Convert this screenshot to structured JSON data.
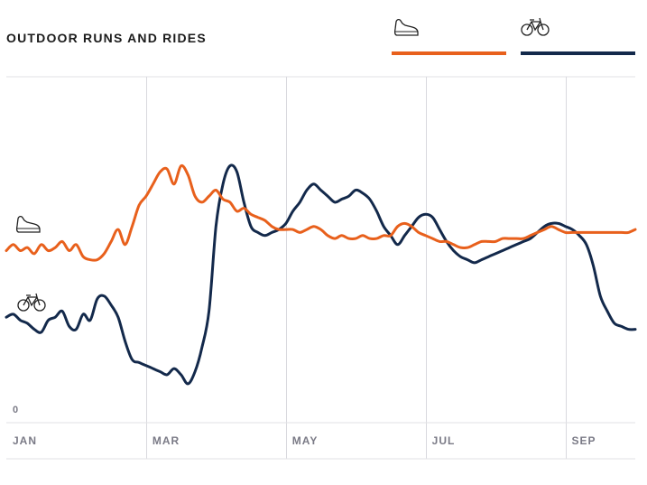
{
  "chart_data": {
    "type": "line",
    "title": "OUTDOOR RUNS AND RIDES",
    "xlabel": "",
    "ylabel": "",
    "y_tick_labels": [
      "0"
    ],
    "x_tick_labels": [
      "JAN",
      "MAR",
      "MAY",
      "JUL",
      "SEP"
    ],
    "x_tick_positions": [
      0,
      2,
      4,
      6,
      8
    ],
    "xlim": [
      0,
      9
    ],
    "ylim": [
      0,
      100
    ],
    "grid": "vertical",
    "legend": "top-right",
    "series": [
      {
        "icon": "shoe-icon",
        "color": "#e8601c",
        "x": [
          0,
          0.1,
          0.2,
          0.3,
          0.4,
          0.5,
          0.6,
          0.7,
          0.8,
          0.9,
          1.0,
          1.1,
          1.2,
          1.3,
          1.4,
          1.5,
          1.6,
          1.7,
          1.8,
          1.9,
          2.0,
          2.1,
          2.2,
          2.3,
          2.4,
          2.5,
          2.6,
          2.7,
          2.8,
          2.9,
          3.0,
          3.1,
          3.2,
          3.3,
          3.4,
          3.5,
          3.6,
          3.7,
          3.8,
          3.9,
          4.0,
          4.1,
          4.2,
          4.3,
          4.4,
          4.5,
          4.6,
          4.7,
          4.8,
          4.9,
          5.0,
          5.1,
          5.2,
          5.3,
          5.4,
          5.5,
          5.6,
          5.7,
          5.8,
          5.9,
          6.0,
          6.1,
          6.2,
          6.3,
          6.4,
          6.5,
          6.6,
          6.7,
          6.8,
          6.9,
          7.0,
          7.1,
          7.2,
          7.3,
          7.4,
          7.5,
          7.6,
          7.7,
          7.8,
          7.9,
          8.0,
          8.1,
          8.2,
          8.3,
          8.4,
          8.5,
          8.6,
          8.7,
          8.8,
          8.9,
          9.0
        ],
        "values": [
          50,
          52,
          50,
          51,
          49,
          52,
          50,
          51,
          53,
          50,
          52,
          48,
          47,
          47,
          49,
          53,
          57,
          52,
          58,
          65,
          68,
          72,
          76,
          77,
          72,
          78,
          75,
          68,
          66,
          68,
          70,
          67,
          66,
          63,
          64,
          62,
          61,
          60,
          58,
          57,
          57,
          57,
          56,
          57,
          58,
          57,
          55,
          54,
          55,
          54,
          54,
          55,
          54,
          54,
          55,
          55,
          58,
          59,
          58,
          56,
          55,
          54,
          53,
          53,
          52,
          51,
          51,
          52,
          53,
          53,
          53,
          54,
          54,
          54,
          54,
          55,
          56,
          57,
          58,
          57,
          56,
          56,
          56,
          56,
          56,
          56,
          56,
          56,
          56,
          56,
          57
        ]
      },
      {
        "icon": "bicycle-icon",
        "color": "#13294b",
        "x": [
          0,
          0.1,
          0.2,
          0.3,
          0.4,
          0.5,
          0.6,
          0.7,
          0.8,
          0.9,
          1.0,
          1.1,
          1.2,
          1.3,
          1.4,
          1.5,
          1.6,
          1.7,
          1.8,
          1.9,
          2.0,
          2.1,
          2.2,
          2.3,
          2.4,
          2.5,
          2.6,
          2.7,
          2.8,
          2.9,
          3.0,
          3.1,
          3.2,
          3.3,
          3.4,
          3.5,
          3.6,
          3.7,
          3.8,
          3.9,
          4.0,
          4.1,
          4.2,
          4.3,
          4.4,
          4.5,
          4.6,
          4.7,
          4.8,
          4.9,
          5.0,
          5.1,
          5.2,
          5.3,
          5.4,
          5.5,
          5.6,
          5.7,
          5.8,
          5.9,
          6.0,
          6.1,
          6.2,
          6.3,
          6.4,
          6.5,
          6.6,
          6.7,
          6.8,
          6.9,
          7.0,
          7.1,
          7.2,
          7.3,
          7.4,
          7.5,
          7.6,
          7.7,
          7.8,
          7.9,
          8.0,
          8.1,
          8.2,
          8.3,
          8.4,
          8.5,
          8.6,
          8.7,
          8.8,
          8.9,
          9.0
        ],
        "values": [
          28,
          29,
          27,
          26,
          24,
          23,
          27,
          28,
          30,
          25,
          24,
          29,
          27,
          34,
          35,
          32,
          28,
          20,
          14,
          13,
          12,
          11,
          10,
          9,
          11,
          9,
          6,
          10,
          18,
          30,
          58,
          72,
          78,
          76,
          66,
          58,
          56,
          55,
          56,
          57,
          59,
          63,
          66,
          70,
          72,
          70,
          68,
          66,
          67,
          68,
          70,
          69,
          67,
          63,
          58,
          55,
          52,
          55,
          58,
          61,
          62,
          61,
          57,
          53,
          50,
          48,
          47,
          46,
          47,
          48,
          49,
          50,
          51,
          52,
          53,
          54,
          56,
          58,
          59,
          59,
          58,
          57,
          55,
          52,
          45,
          35,
          30,
          26,
          25,
          24,
          24
        ]
      }
    ]
  },
  "colors": {
    "run": "#e8601c",
    "ride": "#13294b",
    "grid": "#d9d9de",
    "tick": "#7a7a86"
  }
}
